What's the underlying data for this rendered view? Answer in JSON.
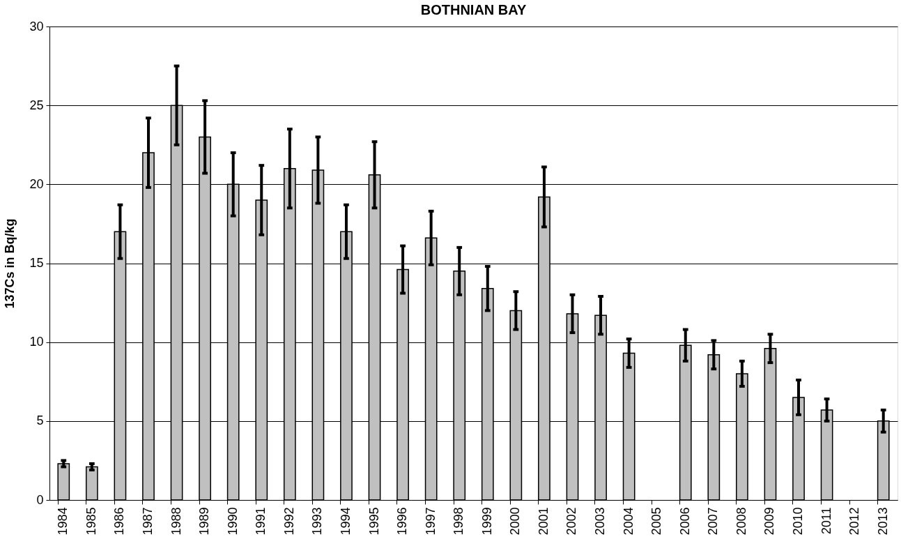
{
  "chart_data": {
    "type": "bar",
    "title": "BOTHNIAN BAY",
    "ylabel": "137Cs in Bq/kg",
    "categories": [
      "1984",
      "1985",
      "1986",
      "1987",
      "1988",
      "1989",
      "1990",
      "1991",
      "1992",
      "1993",
      "1994",
      "1995",
      "1996",
      "1997",
      "1998",
      "1999",
      "2000",
      "2001",
      "2002",
      "2003",
      "2004",
      "2005",
      "2006",
      "2007",
      "2008",
      "2009",
      "2010",
      "2011",
      "2012",
      "2013"
    ],
    "values": [
      2.3,
      2.1,
      17,
      22,
      25,
      23,
      20,
      19,
      21,
      20.9,
      17,
      20.6,
      14.6,
      16.6,
      14.5,
      13.4,
      12,
      19.2,
      11.8,
      11.7,
      9.3,
      null,
      9.8,
      9.2,
      8,
      9.6,
      6.5,
      5.7,
      null,
      5
    ],
    "errors": [
      0.2,
      0.2,
      1.7,
      2.2,
      2.5,
      2.3,
      2,
      2.2,
      2.5,
      2.1,
      1.7,
      2.1,
      1.5,
      1.7,
      1.5,
      1.4,
      1.2,
      1.9,
      1.2,
      1.2,
      0.9,
      null,
      1,
      0.9,
      0.8,
      0.9,
      1.1,
      0.7,
      null,
      0.7
    ],
    "color": "#c0c0c0",
    "ylim": [
      0,
      30
    ],
    "yticks": [
      0,
      5,
      10,
      15,
      20,
      25,
      30
    ],
    "grid": "y"
  }
}
